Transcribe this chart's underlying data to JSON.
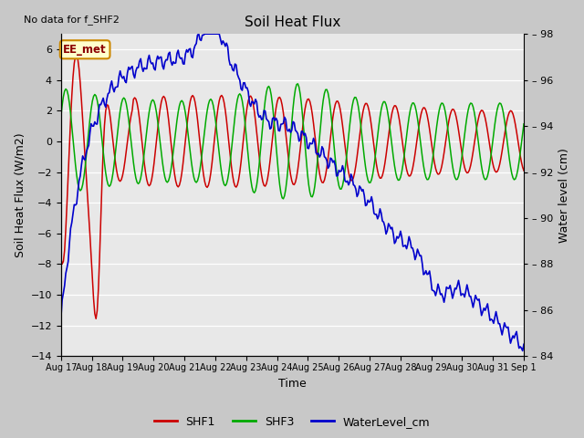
{
  "title": "Soil Heat Flux",
  "no_data_text": "No data for f_SHF2",
  "ylabel_left": "Soil Heat Flux (W/m2)",
  "ylabel_right": "Water level (cm)",
  "xlabel": "Time",
  "station_label": "EE_met",
  "ylim_left": [
    -14,
    7
  ],
  "ylim_right": [
    84,
    98
  ],
  "yticks_left": [
    -14,
    -12,
    -10,
    -8,
    -6,
    -4,
    -2,
    0,
    2,
    4,
    6
  ],
  "yticks_right": [
    84,
    86,
    88,
    90,
    92,
    94,
    96,
    98
  ],
  "shf1_color": "#cc0000",
  "shf3_color": "#00aa00",
  "water_color": "#0000cc",
  "legend_entries": [
    "SHF1",
    "SHF3",
    "WaterLevel_cm"
  ],
  "n_days": 16,
  "xtick_labels": [
    "Aug 17",
    "Aug 18",
    "Aug 19",
    "Aug 20",
    "Aug 21",
    "Aug 22",
    "Aug 23",
    "Aug 24",
    "Aug 25",
    "Aug 26",
    "Aug 27",
    "Aug 28",
    "Aug 29",
    "Aug 30",
    "Aug 31",
    "Sep 1"
  ]
}
